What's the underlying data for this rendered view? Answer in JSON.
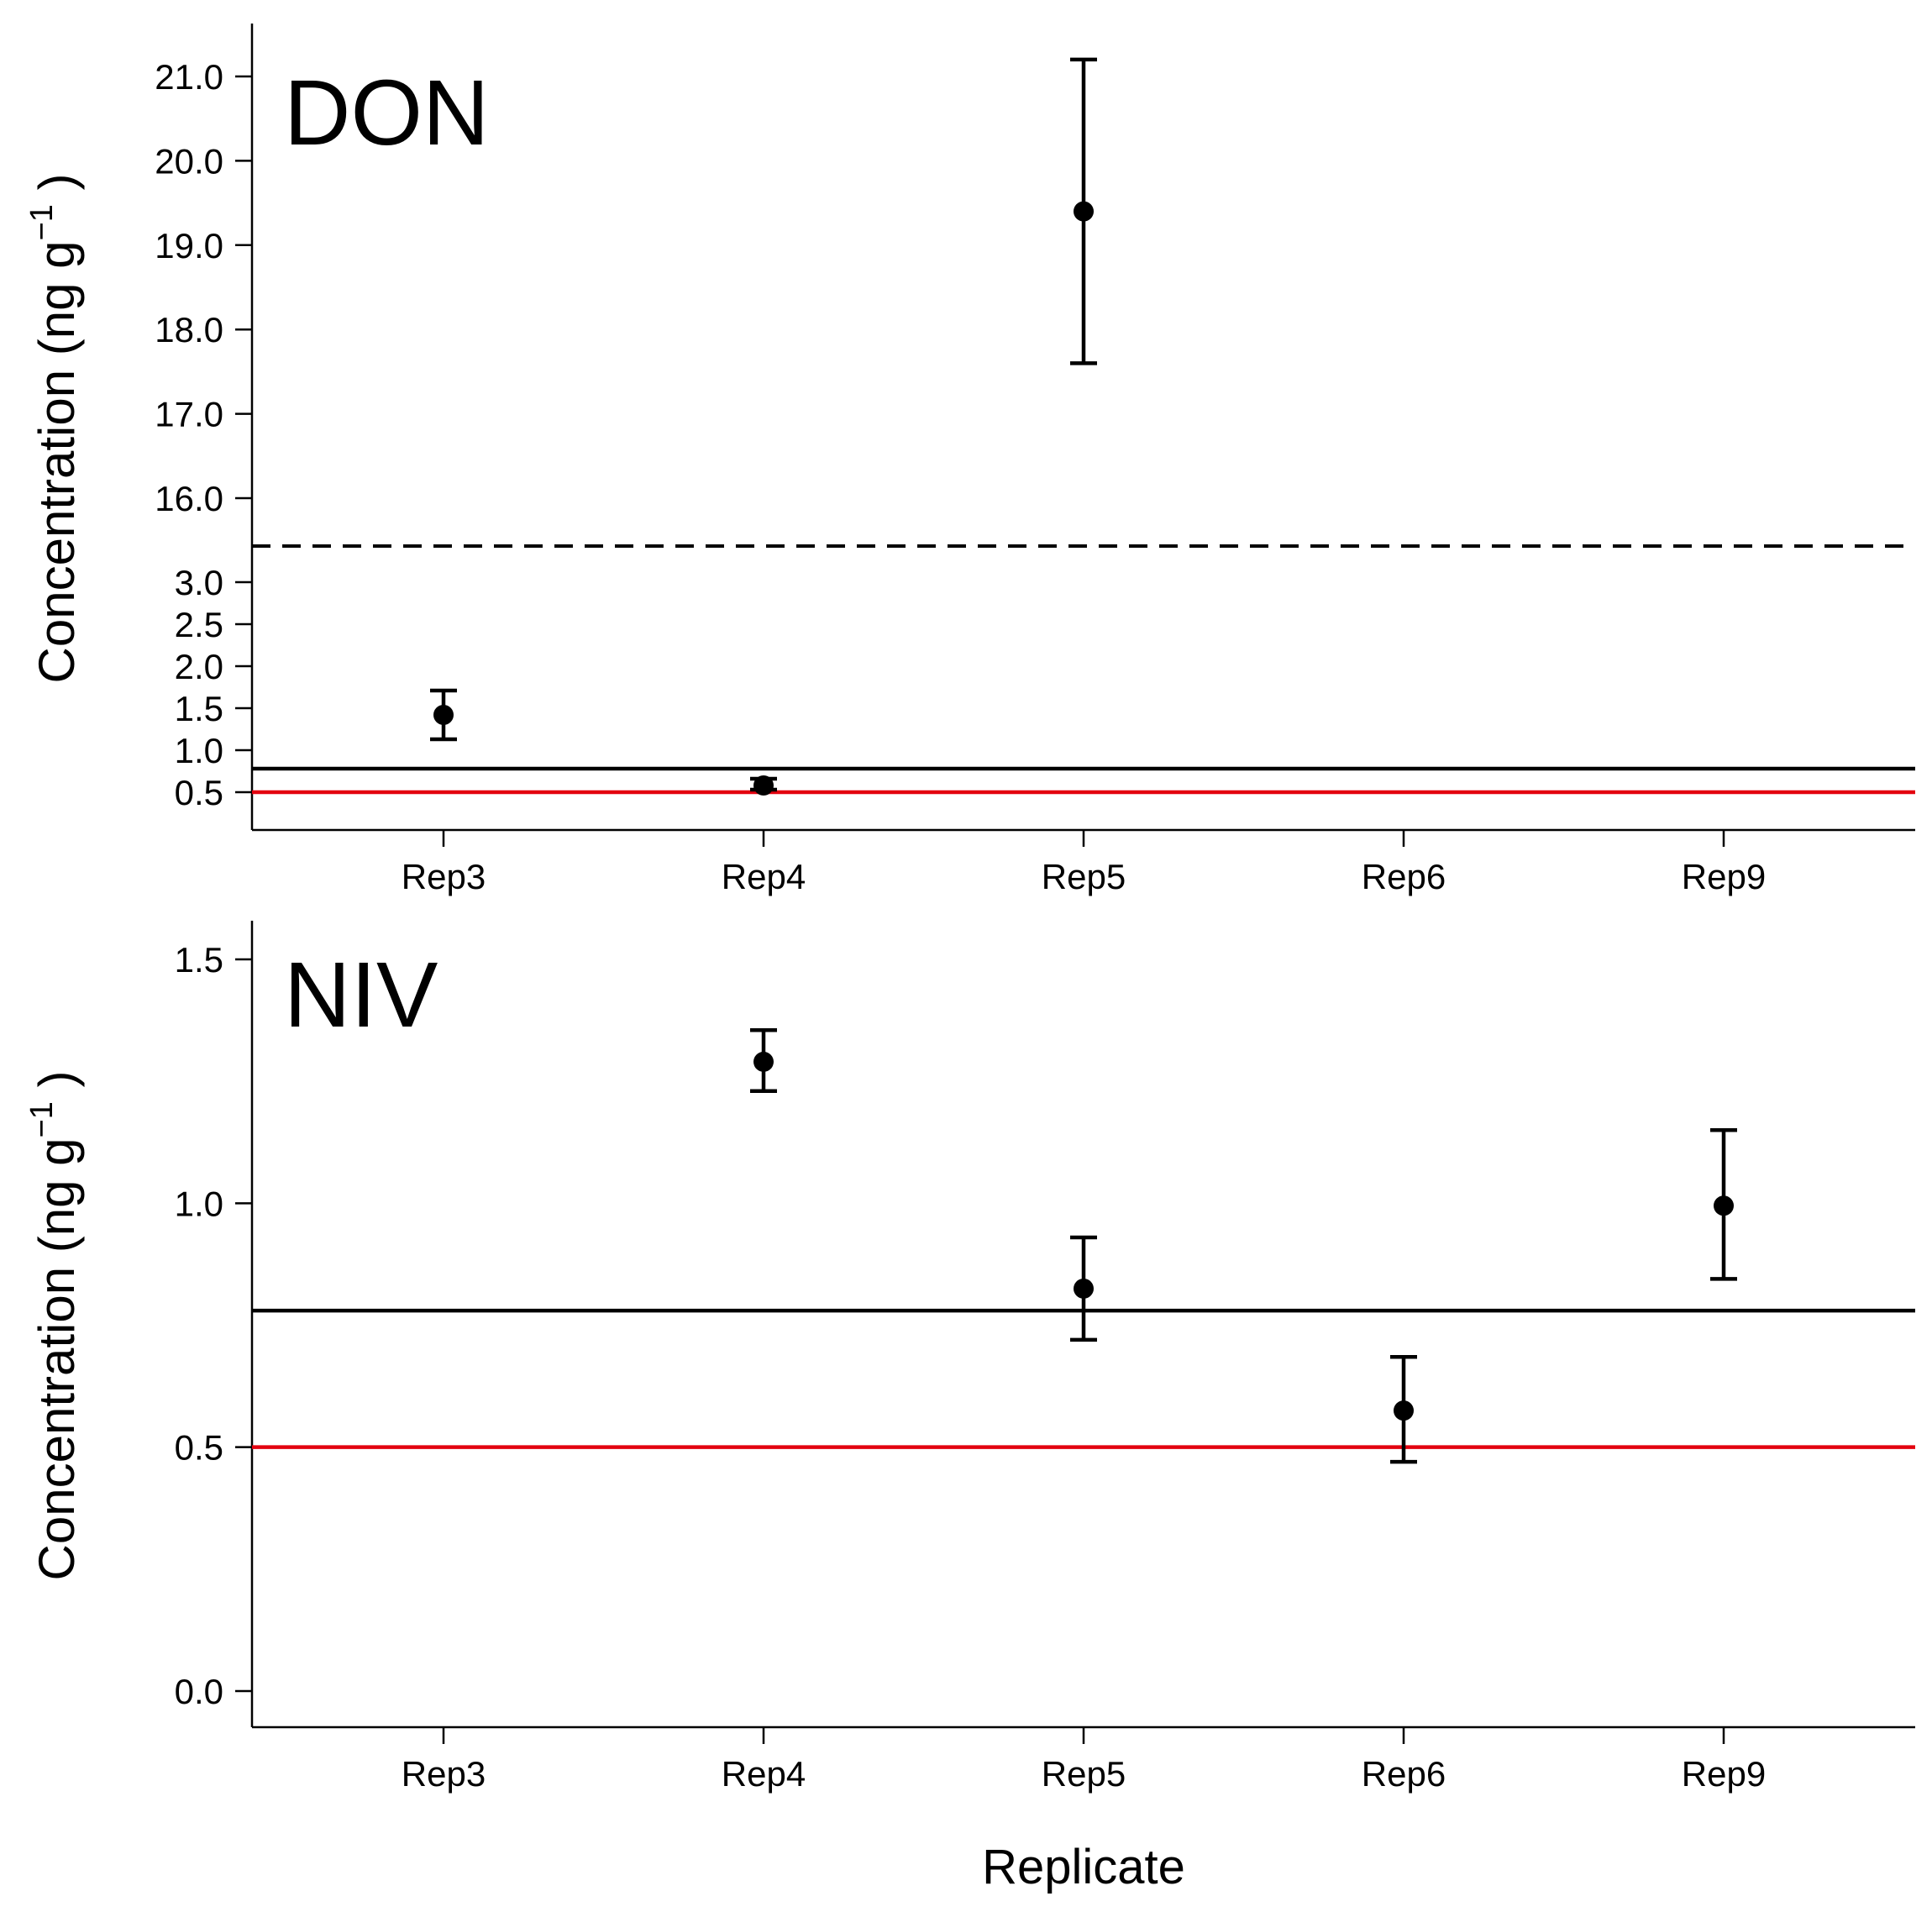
{
  "colors": {
    "points": "#000000",
    "reference_line": "#000000",
    "threshold_line": "#e3000f",
    "dashed_break": "#000000"
  },
  "x_axis_title": "Replicate",
  "chart_data": [
    {
      "type": "scatter",
      "panel_label": "DON",
      "ylabel_main": "Concentration (ng g",
      "ylabel_sup": "−1",
      "ylabel_close": " )",
      "categories": [
        "Rep3",
        "Rep4",
        "Rep5",
        "Rep6",
        "Rep9"
      ],
      "axis_break": {
        "lower_max": 3.5,
        "upper_min": 15.5,
        "style": "dashed"
      },
      "y_ticks": [
        0.5,
        1.0,
        1.5,
        2.0,
        2.5,
        3.0,
        16.0,
        17.0,
        18.0,
        19.0,
        20.0,
        21.0
      ],
      "y_tick_labels": [
        "0.5",
        "1.0",
        "1.5",
        "2.0",
        "2.5",
        "3.0",
        "16.0",
        "17.0",
        "18.0",
        "19.0",
        "20.0",
        "21.0"
      ],
      "ylim": [
        0.05,
        21.6
      ],
      "series": [
        {
          "name": "DON",
          "points": [
            {
              "category": "Rep3",
              "value": 1.42,
              "lower": 1.13,
              "upper": 1.71
            },
            {
              "category": "Rep4",
              "value": 0.58,
              "lower": 0.53,
              "upper": 0.66
            },
            {
              "category": "Rep5",
              "value": 19.4,
              "lower": 17.6,
              "upper": 21.2
            }
          ]
        }
      ],
      "reference_lines": [
        {
          "name": "black-line",
          "value": 0.78,
          "color": "#000000"
        },
        {
          "name": "red-line",
          "value": 0.5,
          "color": "#e3000f"
        }
      ]
    },
    {
      "type": "scatter",
      "panel_label": "NIV",
      "ylabel_main": "Concentration (ng g",
      "ylabel_sup": "−1",
      "ylabel_close": " )",
      "categories": [
        "Rep3",
        "Rep4",
        "Rep5",
        "Rep6",
        "Rep9"
      ],
      "y_ticks": [
        0.0,
        0.5,
        1.0,
        1.5
      ],
      "y_tick_labels": [
        "0.0",
        "0.5",
        "1.0",
        "1.5"
      ],
      "ylim": [
        -0.075,
        1.585
      ],
      "series": [
        {
          "name": "NIV",
          "points": [
            {
              "category": "Rep4",
              "value": 1.29,
              "lower": 1.23,
              "upper": 1.355
            },
            {
              "category": "Rep5",
              "value": 0.825,
              "lower": 0.72,
              "upper": 0.93
            },
            {
              "category": "Rep6",
              "value": 0.575,
              "lower": 0.47,
              "upper": 0.685
            },
            {
              "category": "Rep9",
              "value": 0.995,
              "lower": 0.845,
              "upper": 1.15
            }
          ]
        }
      ],
      "reference_lines": [
        {
          "name": "black-line",
          "value": 0.78,
          "color": "#000000"
        },
        {
          "name": "red-line",
          "value": 0.5,
          "color": "#e3000f"
        }
      ]
    }
  ]
}
